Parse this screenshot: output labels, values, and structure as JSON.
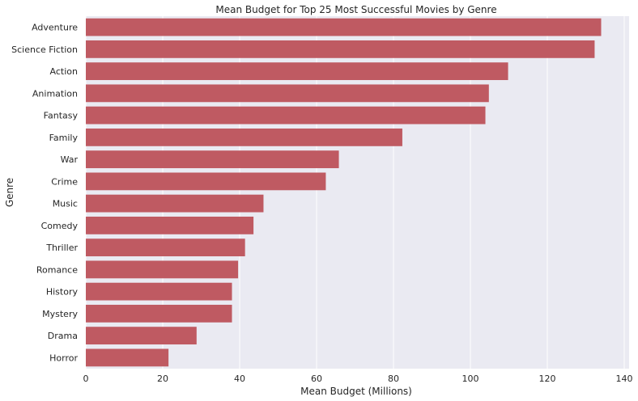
{
  "chart_data": {
    "type": "bar",
    "orientation": "horizontal",
    "title": "Mean Budget for Top 25 Most Successful Movies by Genre",
    "xlabel": "Mean Budget (Millions)",
    "ylabel": "Genre",
    "xlim": [
      0,
      140
    ],
    "xticks": [
      0,
      20,
      40,
      60,
      80,
      100,
      120,
      140
    ],
    "grid": true,
    "colors": {
      "bar": "#bf5a62",
      "plot_background": "#eaeaf2",
      "grid": "#ffffff"
    },
    "categories": [
      "Adventure",
      "Science Fiction",
      "Action",
      "Animation",
      "Fantasy",
      "Family",
      "War",
      "Crime",
      "Music",
      "Comedy",
      "Thriller",
      "Romance",
      "History",
      "Mystery",
      "Drama",
      "Horror"
    ],
    "values": [
      134.0,
      132.3,
      109.8,
      104.8,
      103.9,
      82.3,
      65.8,
      62.4,
      46.2,
      43.6,
      41.4,
      39.6,
      38.0,
      38.0,
      28.8,
      21.5
    ]
  }
}
